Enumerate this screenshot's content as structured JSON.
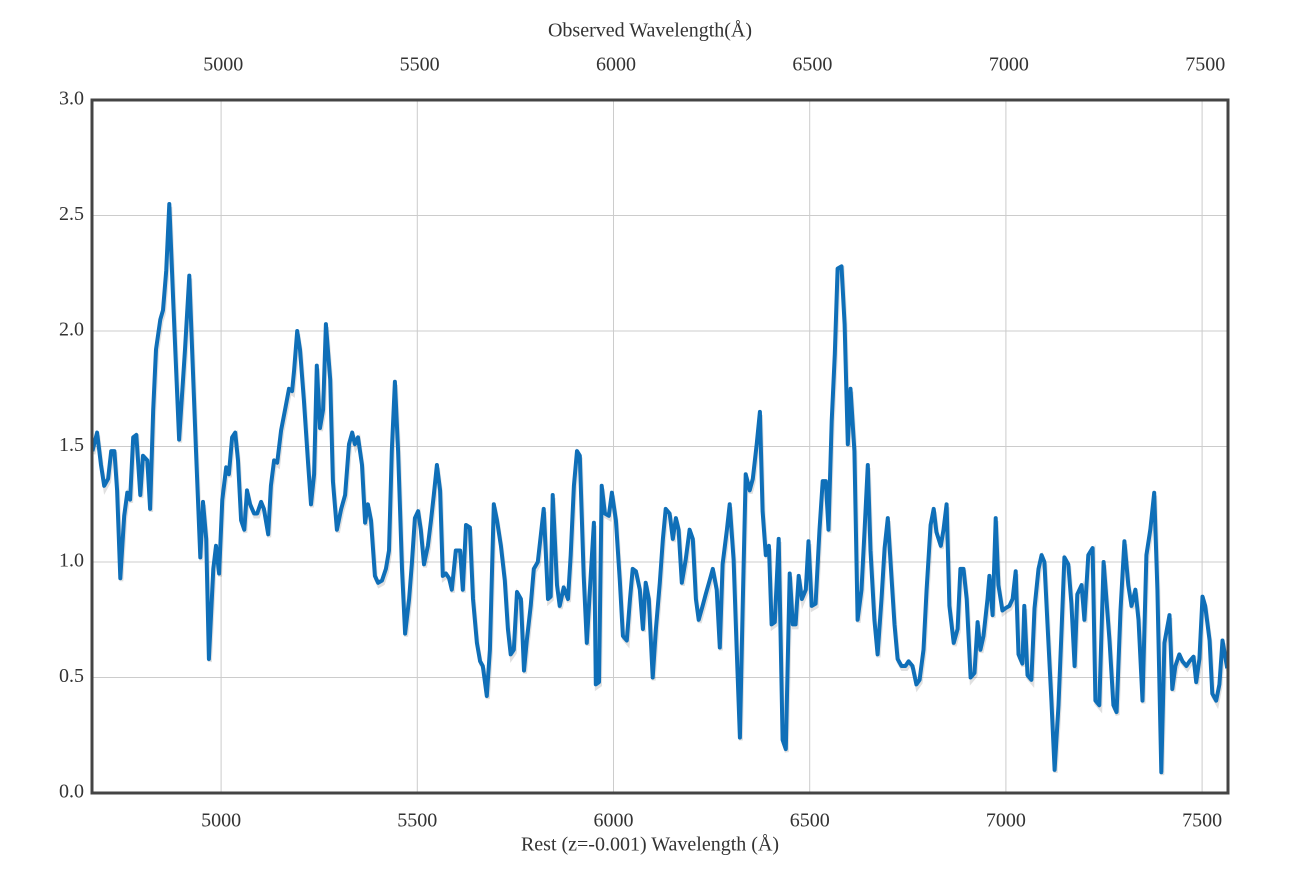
{
  "chart_data": {
    "type": "line",
    "x2label": "Observed Wavelength(Å)",
    "xlabel": "Rest (z=-0.001) Wavelength (Å)",
    "color": "#0f6fb8",
    "grid": true,
    "xlim": [
      4671,
      7566
    ],
    "xticks": [
      5000,
      5500,
      6000,
      6500,
      7000,
      7500
    ],
    "x2lim": [
      4666,
      7558
    ],
    "x2ticks": [
      5000,
      5500,
      6000,
      6500,
      7000,
      7500
    ],
    "ylim": [
      0,
      3
    ],
    "yticks": [
      {
        "value": 0,
        "label": "0.0"
      },
      0.5,
      {
        "value": 1,
        "label": "1.0"
      },
      1.5,
      {
        "value": 2,
        "label": "2.0"
      },
      2.5,
      {
        "value": 3,
        "label": "3.0"
      }
    ],
    "x": [
      4672,
      4684,
      4694,
      4702,
      4712,
      4720,
      4728,
      4735,
      4743,
      4753,
      4761,
      4768,
      4776,
      4784,
      4794,
      4801,
      4812,
      4819,
      4827,
      4834,
      4845,
      4852,
      4860,
      4868,
      4878,
      4893,
      4908,
      4919,
      4926,
      4936,
      4947,
      4954,
      4962,
      4969,
      4980,
      4987,
      4995,
      5003,
      5013,
      5020,
      5028,
      5036,
      5043,
      5051,
      5059,
      5066,
      5074,
      5084,
      5092,
      5102,
      5109,
      5120,
      5127,
      5135,
      5143,
      5153,
      5163,
      5173,
      5181,
      5186,
      5194,
      5201,
      5211,
      5222,
      5229,
      5237,
      5244,
      5252,
      5260,
      5267,
      5278,
      5285,
      5295,
      5306,
      5316,
      5326,
      5334,
      5341,
      5349,
      5359,
      5367,
      5374,
      5382,
      5392,
      5400,
      5410,
      5420,
      5428,
      5435,
      5443,
      5451,
      5461,
      5469,
      5479,
      5486,
      5494,
      5502,
      5509,
      5517,
      5527,
      5535,
      5542,
      5550,
      5558,
      5565,
      5573,
      5581,
      5588,
      5598,
      5609,
      5616,
      5624,
      5634,
      5642,
      5652,
      5660,
      5667,
      5677,
      5685,
      5695,
      5703,
      5713,
      5723,
      5731,
      5738,
      5746,
      5754,
      5764,
      5772,
      5779,
      5789,
      5797,
      5807,
      5815,
      5822,
      5833,
      5840,
      5845,
      5856,
      5863,
      5873,
      5884,
      5891,
      5899,
      5907,
      5914,
      5924,
      5932,
      5942,
      5950,
      5955,
      5963,
      5970,
      5978,
      5988,
      5996,
      6006,
      6016,
      6024,
      6034,
      6042,
      6049,
      6057,
      6067,
      6075,
      6082,
      6090,
      6100,
      6108,
      6118,
      6126,
      6133,
      6143,
      6151,
      6159,
      6166,
      6174,
      6184,
      6194,
      6202,
      6210,
      6217,
      6227,
      6235,
      6245,
      6253,
      6263,
      6271,
      6278,
      6289,
      6296,
      6306,
      6314,
      6322,
      6329,
      6337,
      6347,
      6355,
      6365,
      6373,
      6380,
      6388,
      6396,
      6403,
      6411,
      6421,
      6431,
      6439,
      6449,
      6457,
      6464,
      6472,
      6480,
      6490,
      6497,
      6505,
      6515,
      6525,
      6533,
      6541,
      6548,
      6556,
      6564,
      6571,
      6581,
      6589,
      6597,
      6604,
      6614,
      6622,
      6632,
      6640,
      6648,
      6655,
      6665,
      6673,
      6683,
      6691,
      6699,
      6709,
      6716,
      6724,
      6734,
      6744,
      6752,
      6762,
      6772,
      6780,
      6790,
      6798,
      6808,
      6816,
      6823,
      6834,
      6841,
      6849,
      6856,
      6867,
      6877,
      6884,
      6892,
      6900,
      6910,
      6920,
      6928,
      6935,
      6943,
      6953,
      6958,
      6966,
      6974,
      6981,
      6991,
      6999,
      7009,
      7017,
      7025,
      7032,
      7042,
      7047,
      7055,
      7065,
      7073,
      7083,
      7091,
      7098,
      7106,
      7116,
      7124,
      7134,
      7142,
      7149,
      7159,
      7167,
      7175,
      7182,
      7193,
      7200,
      7210,
      7221,
      7228,
      7238,
      7249,
      7256,
      7264,
      7274,
      7282,
      7292,
      7302,
      7312,
      7320,
      7330,
      7338,
      7348,
      7358,
      7368,
      7378,
      7386,
      7396,
      7404,
      7417,
      7424,
      7432,
      7442,
      7450,
      7460,
      7468,
      7478,
      7485,
      7493,
      7501,
      7508,
      7519,
      7526,
      7536,
      7544,
      7552,
      7564
    ],
    "values": [
      1.48,
      1.56,
      1.42,
      1.33,
      1.36,
      1.48,
      1.48,
      1.31,
      0.93,
      1.2,
      1.3,
      1.27,
      1.54,
      1.55,
      1.29,
      1.46,
      1.44,
      1.23,
      1.66,
      1.92,
      2.05,
      2.09,
      2.26,
      2.55,
      2.13,
      1.53,
      1.92,
      2.24,
      1.92,
      1.48,
      1.02,
      1.26,
      1.1,
      0.58,
      0.97,
      1.07,
      0.95,
      1.27,
      1.41,
      1.38,
      1.54,
      1.56,
      1.44,
      1.18,
      1.14,
      1.31,
      1.25,
      1.21,
      1.21,
      1.26,
      1.23,
      1.12,
      1.33,
      1.44,
      1.43,
      1.57,
      1.66,
      1.75,
      1.74,
      1.83,
      2.0,
      1.92,
      1.7,
      1.42,
      1.25,
      1.38,
      1.85,
      1.58,
      1.66,
      2.03,
      1.79,
      1.35,
      1.14,
      1.23,
      1.29,
      1.51,
      1.56,
      1.51,
      1.54,
      1.42,
      1.17,
      1.25,
      1.18,
      0.94,
      0.91,
      0.92,
      0.97,
      1.05,
      1.48,
      1.78,
      1.48,
      0.97,
      0.69,
      0.84,
      0.99,
      1.19,
      1.22,
      1.14,
      0.99,
      1.07,
      1.18,
      1.29,
      1.42,
      1.31,
      0.94,
      0.95,
      0.93,
      0.88,
      1.05,
      1.05,
      0.88,
      1.16,
      1.15,
      0.84,
      0.65,
      0.57,
      0.55,
      0.42,
      0.62,
      1.25,
      1.18,
      1.07,
      0.92,
      0.71,
      0.6,
      0.62,
      0.87,
      0.84,
      0.53,
      0.66,
      0.81,
      0.97,
      1.0,
      1.12,
      1.23,
      0.84,
      0.85,
      1.29,
      0.9,
      0.81,
      0.89,
      0.84,
      1.03,
      1.33,
      1.48,
      1.46,
      0.94,
      0.65,
      0.94,
      1.17,
      0.47,
      0.48,
      1.33,
      1.21,
      1.2,
      1.3,
      1.18,
      0.92,
      0.68,
      0.66,
      0.84,
      0.97,
      0.96,
      0.88,
      0.71,
      0.91,
      0.84,
      0.5,
      0.71,
      0.91,
      1.1,
      1.23,
      1.21,
      1.1,
      1.19,
      1.14,
      0.91,
      1.01,
      1.14,
      1.1,
      0.84,
      0.75,
      0.81,
      0.86,
      0.92,
      0.97,
      0.88,
      0.63,
      0.99,
      1.14,
      1.25,
      1.01,
      0.62,
      0.24,
      0.79,
      1.38,
      1.31,
      1.36,
      1.51,
      1.65,
      1.22,
      1.03,
      1.07,
      0.73,
      0.74,
      1.1,
      0.23,
      0.19,
      0.95,
      0.73,
      0.73,
      0.94,
      0.84,
      0.88,
      1.09,
      0.81,
      0.82,
      1.14,
      1.35,
      1.35,
      1.14,
      1.61,
      1.9,
      2.27,
      2.28,
      2.03,
      1.51,
      1.75,
      1.48,
      0.75,
      0.88,
      1.14,
      1.42,
      1.05,
      0.75,
      0.6,
      0.84,
      1.06,
      1.19,
      0.92,
      0.73,
      0.58,
      0.55,
      0.55,
      0.57,
      0.55,
      0.47,
      0.49,
      0.62,
      0.88,
      1.16,
      1.23,
      1.13,
      1.07,
      1.14,
      1.25,
      0.81,
      0.65,
      0.71,
      0.97,
      0.97,
      0.84,
      0.5,
      0.52,
      0.74,
      0.62,
      0.68,
      0.84,
      0.94,
      0.77,
      1.19,
      0.9,
      0.79,
      0.8,
      0.81,
      0.84,
      0.96,
      0.6,
      0.56,
      0.81,
      0.51,
      0.49,
      0.8,
      0.97,
      1.03,
      1.0,
      0.73,
      0.4,
      0.1,
      0.38,
      0.71,
      1.02,
      0.99,
      0.82,
      0.55,
      0.86,
      0.9,
      0.75,
      1.03,
      1.06,
      0.4,
      0.38,
      1.0,
      0.84,
      0.66,
      0.38,
      0.35,
      0.79,
      1.09,
      0.9,
      0.81,
      0.88,
      0.75,
      0.4,
      1.03,
      1.14,
      1.3,
      0.88,
      0.09,
      0.65,
      0.77,
      0.45,
      0.55,
      0.6,
      0.57,
      0.55,
      0.57,
      0.59,
      0.48,
      0.58,
      0.85,
      0.81,
      0.66,
      0.43,
      0.4,
      0.47,
      0.66,
      0.54
    ]
  }
}
